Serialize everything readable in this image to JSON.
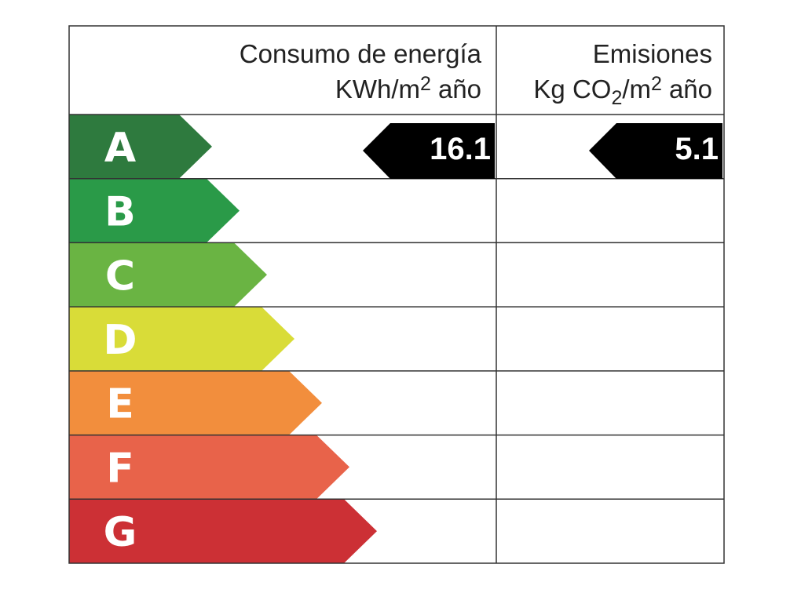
{
  "header": {
    "energy_title": "Consumo de energía",
    "energy_unit": [
      "KWh/m",
      "2",
      "año"
    ],
    "emissions_title": "Emisiones",
    "emissions_unit": [
      "Kg CO",
      "2",
      "/m",
      "2",
      "año"
    ]
  },
  "grades": [
    {
      "label": "A",
      "color": "#2e7a3e"
    },
    {
      "label": "B",
      "color": "#2a9a48"
    },
    {
      "label": "C",
      "color": "#6ab443"
    },
    {
      "label": "D",
      "color": "#d9dc38"
    },
    {
      "label": "E",
      "color": "#f28e3d"
    },
    {
      "label": "F",
      "color": "#e8634a"
    },
    {
      "label": "G",
      "color": "#cc3035"
    }
  ],
  "energy_value": "16.1",
  "emissions_value": "5.1"
}
